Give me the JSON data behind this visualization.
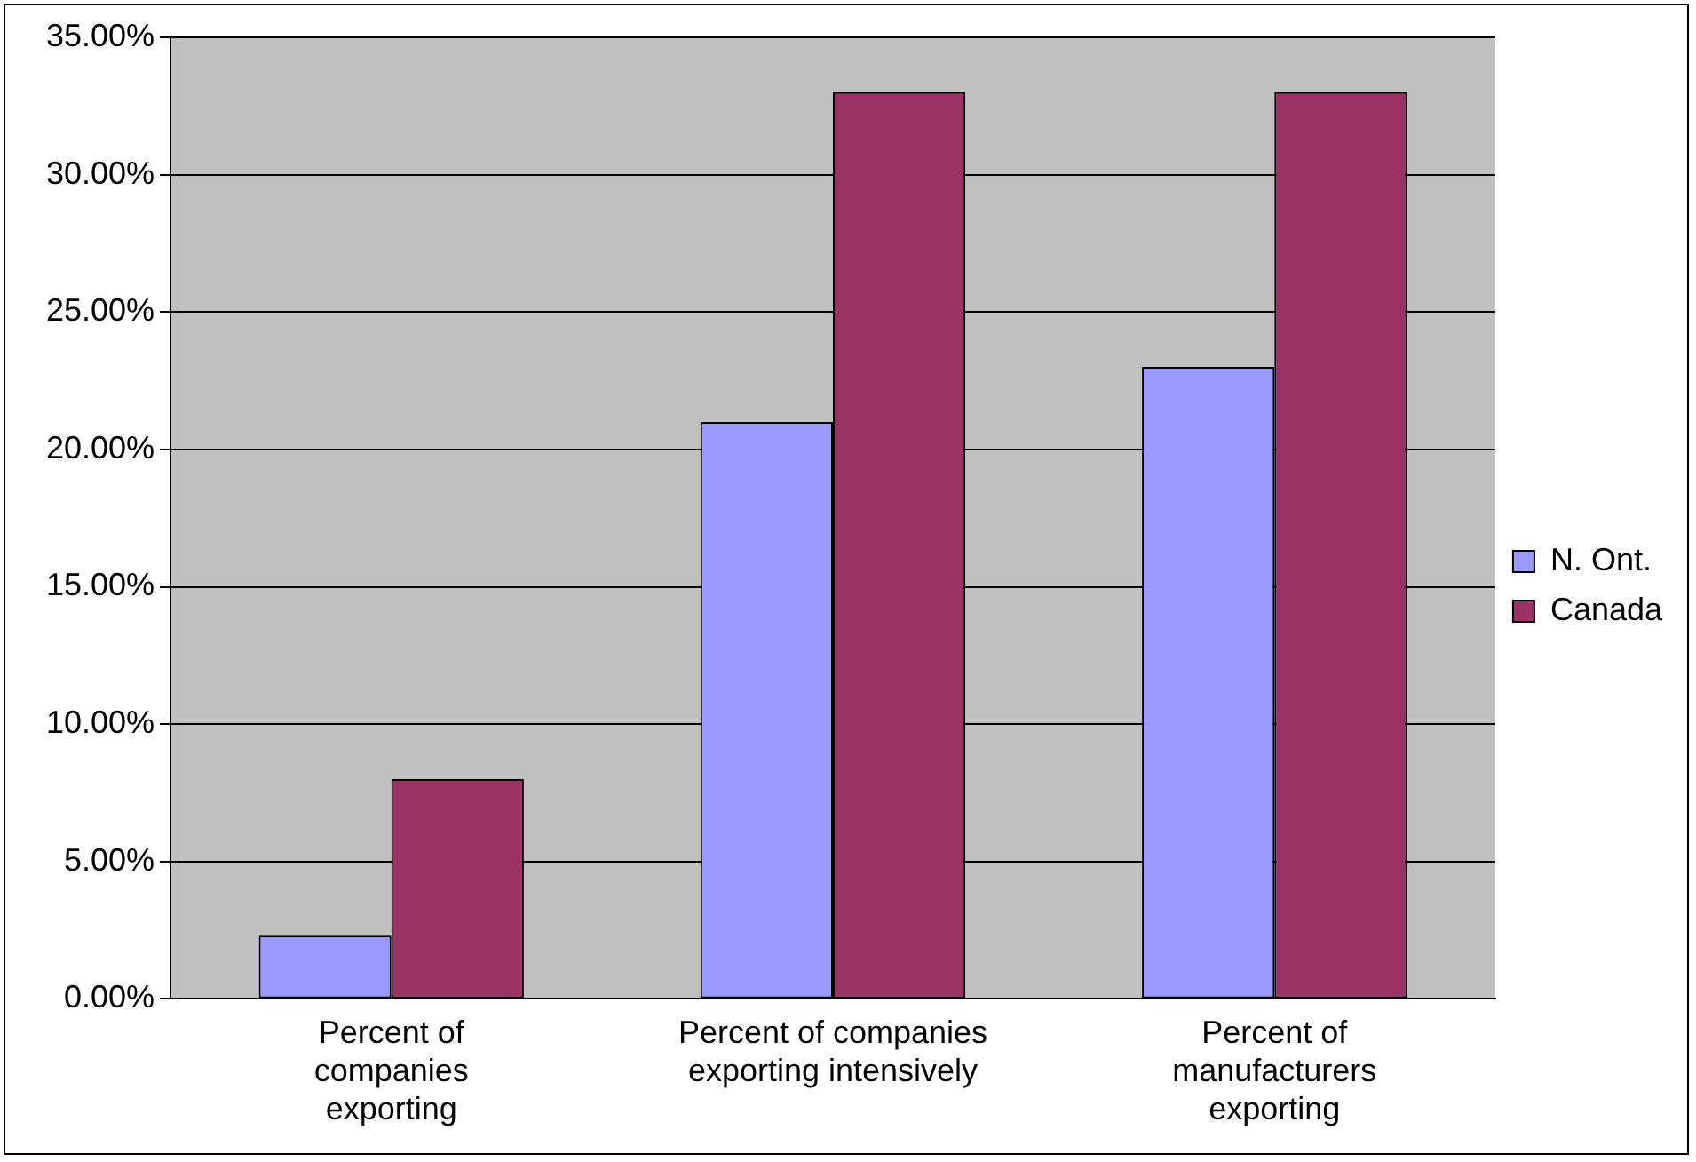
{
  "chart_data": {
    "type": "bar",
    "categories": [
      "Percent of companies exporting",
      "Percent of companies exporting intensively",
      "Percent of manufacturers exporting"
    ],
    "series": [
      {
        "name": "N. Ont.",
        "color": "#9999ff",
        "values": [
          2.3,
          21,
          23
        ]
      },
      {
        "name": "Canada",
        "color": "#993366",
        "values": [
          8,
          33,
          33
        ]
      }
    ],
    "ylim": [
      0,
      35
    ],
    "yticks": [
      {
        "value": 0,
        "label": "0.00%"
      },
      {
        "value": 5,
        "label": "5.00%"
      },
      {
        "value": 10,
        "label": "10.00%"
      },
      {
        "value": 15,
        "label": "15.00%"
      },
      {
        "value": 20,
        "label": "20.00%"
      },
      {
        "value": 25,
        "label": "25.00%"
      },
      {
        "value": 30,
        "label": "30.00%"
      },
      {
        "value": 35,
        "label": "35.00%"
      }
    ],
    "grid": "y",
    "legend": "right"
  }
}
